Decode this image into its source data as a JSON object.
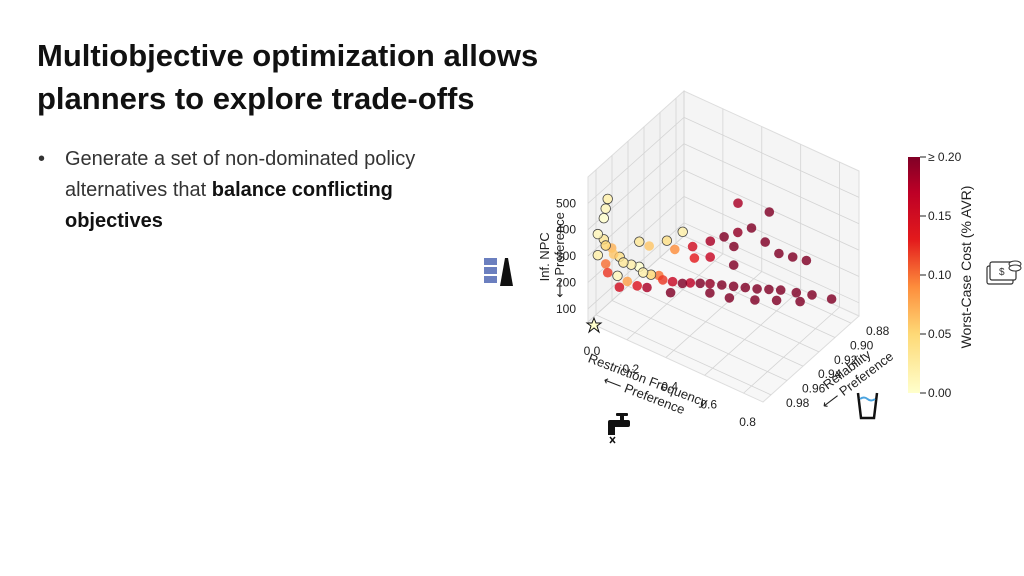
{
  "slide": {
    "title": "Multiobjective optimization allows planners to explore trade-offs",
    "bullet": {
      "text_before": "Generate a set of non-dominated policy alternatives that ",
      "text_bold": "balance conflicting objectives"
    }
  },
  "icons": [
    "stacked-bars-icon",
    "star-icon",
    "water-tap-icon",
    "water-glass-icon",
    "money-stack-icon"
  ],
  "colors": {
    "low": "#ffffcc",
    "mid": "#fd8d3c",
    "high": "#800026"
  },
  "chart_data": {
    "type": "scatter",
    "projection": "3d",
    "x_axis": {
      "label": "Restriction Frequency",
      "direction_label": "⟵ Preference",
      "ticks": [
        "0.0",
        "0.2",
        "0.4",
        "0.6",
        "0.8"
      ],
      "range": [
        0.0,
        0.9
      ]
    },
    "y_axis": {
      "label": "Reliability",
      "direction_label": "⟵ Preference",
      "ticks": [
        "0.88",
        "0.90",
        "0.92",
        "0.94",
        "0.96",
        "0.98"
      ],
      "range": [
        0.87,
        0.99
      ]
    },
    "z_axis": {
      "label": "Inf. NPC",
      "direction_label": "⟵ Preference",
      "ticks": [
        "100",
        "200",
        "300",
        "400",
        "500"
      ],
      "range": [
        50,
        600
      ]
    },
    "colorbar": {
      "label": "Worst-Case Cost (% AVR)",
      "ticks": [
        "0.00",
        "0.05",
        "0.10",
        "0.15",
        "≥ 0.20"
      ],
      "range": [
        0,
        0.2
      ],
      "colormap": "YlOrRd"
    },
    "grid": true,
    "points": [
      {
        "x": 0.05,
        "y": 0.98,
        "z": 470,
        "c": 0.01
      },
      {
        "x": 0.06,
        "y": 0.98,
        "z": 510,
        "c": 0.02
      },
      {
        "x": 0.04,
        "y": 0.98,
        "z": 430,
        "c": 0.0
      },
      {
        "x": 0.03,
        "y": 0.985,
        "z": 380,
        "c": 0.01
      },
      {
        "x": 0.04,
        "y": 0.98,
        "z": 350,
        "c": 0.03
      },
      {
        "x": 0.05,
        "y": 0.98,
        "z": 330,
        "c": 0.05
      },
      {
        "x": 0.06,
        "y": 0.975,
        "z": 310,
        "c": 0.07
      },
      {
        "x": 0.03,
        "y": 0.985,
        "z": 300,
        "c": 0.02
      },
      {
        "x": 0.07,
        "y": 0.975,
        "z": 290,
        "c": 0.06
      },
      {
        "x": 0.08,
        "y": 0.97,
        "z": 270,
        "c": 0.04
      },
      {
        "x": 0.1,
        "y": 0.97,
        "z": 255,
        "c": 0.03
      },
      {
        "x": 0.12,
        "y": 0.965,
        "z": 240,
        "c": 0.02
      },
      {
        "x": 0.05,
        "y": 0.98,
        "z": 260,
        "c": 0.1
      },
      {
        "x": 0.06,
        "y": 0.98,
        "z": 230,
        "c": 0.12
      },
      {
        "x": 0.09,
        "y": 0.975,
        "z": 215,
        "c": 0.01
      },
      {
        "x": 0.14,
        "y": 0.96,
        "z": 225,
        "c": 0.0
      },
      {
        "x": 0.16,
        "y": 0.96,
        "z": 210,
        "c": 0.02
      },
      {
        "x": 0.12,
        "y": 0.97,
        "z": 190,
        "c": 0.08
      },
      {
        "x": 0.18,
        "y": 0.955,
        "z": 195,
        "c": 0.05
      },
      {
        "x": 0.2,
        "y": 0.95,
        "z": 185,
        "c": 0.1
      },
      {
        "x": 0.1,
        "y": 0.975,
        "z": 175,
        "c": 0.15
      },
      {
        "x": 0.15,
        "y": 0.965,
        "z": 170,
        "c": 0.14
      },
      {
        "x": 0.22,
        "y": 0.95,
        "z": 175,
        "c": 0.12
      },
      {
        "x": 0.25,
        "y": 0.945,
        "z": 165,
        "c": 0.16
      },
      {
        "x": 0.18,
        "y": 0.96,
        "z": 160,
        "c": 0.18
      },
      {
        "x": 0.28,
        "y": 0.94,
        "z": 155,
        "c": 0.2
      },
      {
        "x": 0.3,
        "y": 0.935,
        "z": 150,
        "c": 0.17
      },
      {
        "x": 0.33,
        "y": 0.93,
        "z": 145,
        "c": 0.2
      },
      {
        "x": 0.26,
        "y": 0.95,
        "z": 140,
        "c": 0.2
      },
      {
        "x": 0.36,
        "y": 0.925,
        "z": 140,
        "c": 0.19
      },
      {
        "x": 0.4,
        "y": 0.92,
        "z": 135,
        "c": 0.2
      },
      {
        "x": 0.44,
        "y": 0.915,
        "z": 130,
        "c": 0.2
      },
      {
        "x": 0.38,
        "y": 0.93,
        "z": 125,
        "c": 0.2
      },
      {
        "x": 0.48,
        "y": 0.91,
        "z": 125,
        "c": 0.2
      },
      {
        "x": 0.52,
        "y": 0.905,
        "z": 120,
        "c": 0.2
      },
      {
        "x": 0.56,
        "y": 0.9,
        "z": 118,
        "c": 0.2
      },
      {
        "x": 0.6,
        "y": 0.895,
        "z": 115,
        "c": 0.2
      },
      {
        "x": 0.66,
        "y": 0.89,
        "z": 112,
        "c": 0.2
      },
      {
        "x": 0.72,
        "y": 0.885,
        "z": 110,
        "c": 0.2
      },
      {
        "x": 0.8,
        "y": 0.88,
        "z": 108,
        "c": 0.2
      },
      {
        "x": 0.62,
        "y": 0.905,
        "z": 110,
        "c": 0.2
      },
      {
        "x": 0.55,
        "y": 0.915,
        "z": 115,
        "c": 0.2
      },
      {
        "x": 0.7,
        "y": 0.895,
        "z": 105,
        "c": 0.2
      },
      {
        "x": 0.46,
        "y": 0.925,
        "z": 120,
        "c": 0.2
      },
      {
        "x": 0.35,
        "y": 0.905,
        "z": 260,
        "c": 0.2
      },
      {
        "x": 0.4,
        "y": 0.9,
        "z": 280,
        "c": 0.19
      },
      {
        "x": 0.3,
        "y": 0.91,
        "z": 240,
        "c": 0.18
      },
      {
        "x": 0.45,
        "y": 0.895,
        "z": 300,
        "c": 0.2
      },
      {
        "x": 0.25,
        "y": 0.92,
        "z": 230,
        "c": 0.15
      },
      {
        "x": 0.5,
        "y": 0.89,
        "z": 250,
        "c": 0.2
      },
      {
        "x": 0.38,
        "y": 0.9,
        "z": 220,
        "c": 0.2
      },
      {
        "x": 0.55,
        "y": 0.885,
        "z": 210,
        "c": 0.2
      },
      {
        "x": 0.6,
        "y": 0.88,
        "z": 200,
        "c": 0.2
      },
      {
        "x": 0.65,
        "y": 0.875,
        "z": 190,
        "c": 0.2
      },
      {
        "x": 0.32,
        "y": 0.915,
        "z": 200,
        "c": 0.16
      },
      {
        "x": 0.28,
        "y": 0.925,
        "z": 210,
        "c": 0.13
      },
      {
        "x": 0.42,
        "y": 0.91,
        "z": 190,
        "c": 0.2
      },
      {
        "x": 0.22,
        "y": 0.935,
        "z": 250,
        "c": 0.09
      },
      {
        "x": 0.2,
        "y": 0.94,
        "z": 290,
        "c": 0.04
      },
      {
        "x": 0.24,
        "y": 0.93,
        "z": 310,
        "c": 0.02
      },
      {
        "x": 0.48,
        "y": 0.88,
        "z": 330,
        "c": 0.2
      },
      {
        "x": 0.36,
        "y": 0.89,
        "z": 350,
        "c": 0.18
      },
      {
        "x": 0.15,
        "y": 0.95,
        "z": 280,
        "c": 0.06
      },
      {
        "x": 0.12,
        "y": 0.955,
        "z": 300,
        "c": 0.03
      }
    ]
  }
}
